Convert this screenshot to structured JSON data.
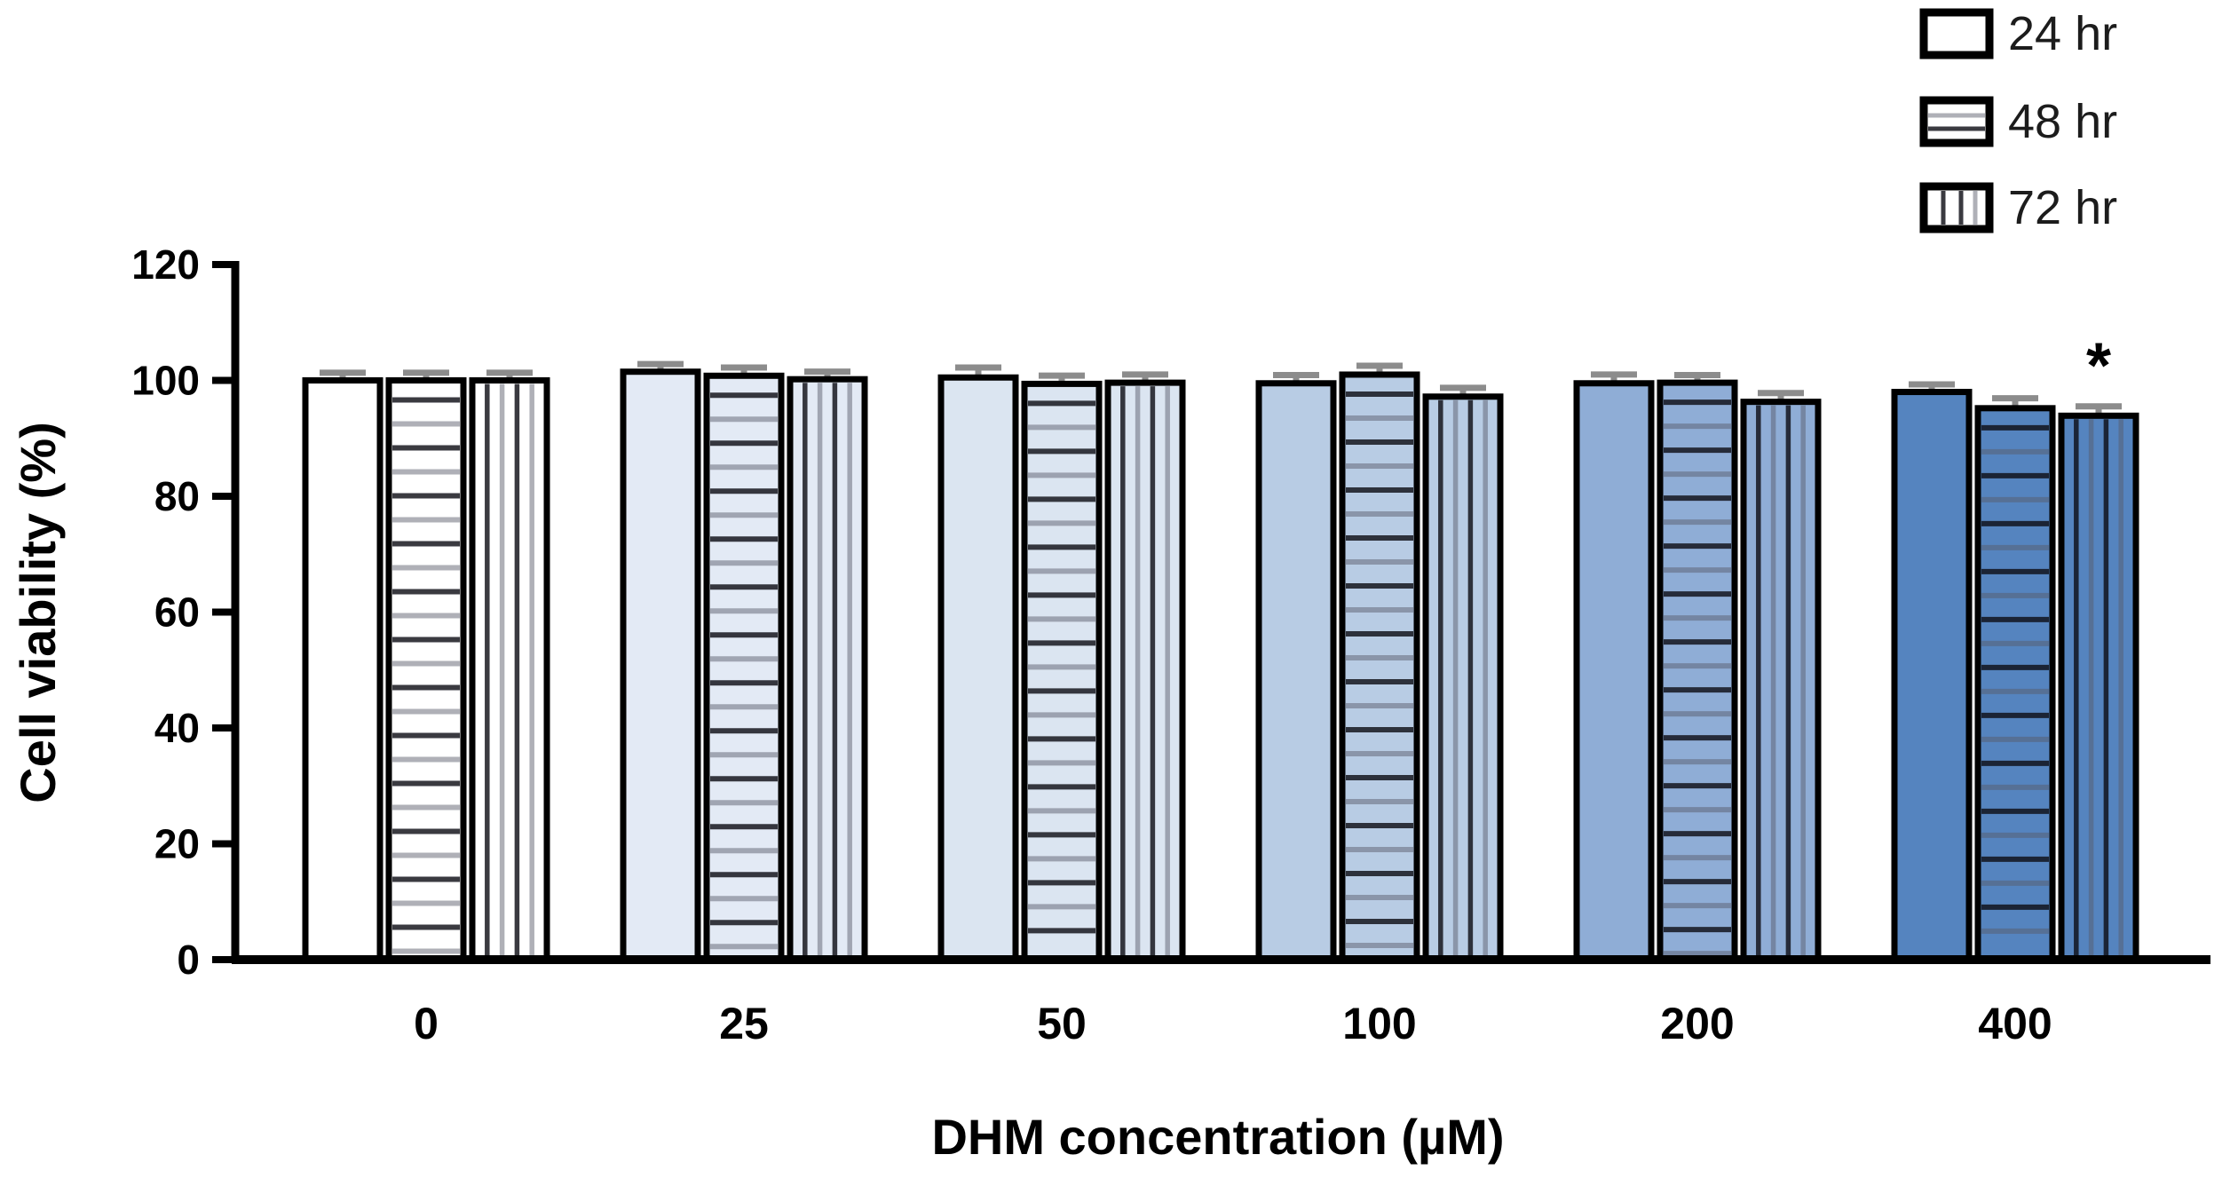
{
  "figure": {
    "background": "#ffffff",
    "outline_color": "#000000",
    "errorbar_color": "#8c8c8c",
    "stripe_dark": "rgba(15,15,22,0.82)",
    "stripe_gray": "rgba(88,90,104,0.48)"
  },
  "legend": {
    "position": "top-right",
    "items": [
      {
        "label": "24 hr",
        "pattern": "solid"
      },
      {
        "label": "48 hr",
        "pattern": "h-stripes"
      },
      {
        "label": "72 hr",
        "pattern": "v-stripes"
      }
    ]
  },
  "chart_data": {
    "type": "bar",
    "title": "",
    "xlabel": "DHM concentration (µM)",
    "ylabel": "Cell viability (%)",
    "ylim": [
      0,
      120
    ],
    "yticks": [
      0,
      20,
      40,
      60,
      80,
      100,
      120
    ],
    "grid": false,
    "legend_position": "top-right",
    "categories": [
      "0",
      "25",
      "50",
      "100",
      "200",
      "400"
    ],
    "group_colors": [
      "#ffffff",
      "#e3eaf5",
      "#dbe5f1",
      "#b8cce4",
      "#8fadd6",
      "#5584bf"
    ],
    "series": [
      {
        "name": "24 hr",
        "pattern": "solid",
        "values": [
          100,
          101.5,
          100.5,
          99.5,
          99.5,
          98
        ],
        "errors": [
          0.4,
          0.4,
          0.8,
          0.5,
          0.6,
          0.4
        ]
      },
      {
        "name": "48 hr",
        "pattern": "h-stripes",
        "values": [
          100,
          100.8,
          99.4,
          101,
          99.6,
          95.2
        ],
        "errors": [
          0.4,
          0.5,
          0.5,
          0.6,
          0.4,
          0.8
        ]
      },
      {
        "name": "72 hr",
        "pattern": "v-stripes",
        "values": [
          100,
          100.2,
          99.6,
          97.2,
          96.3,
          93.9
        ],
        "errors": [
          0.4,
          0.4,
          0.5,
          0.6,
          0.6,
          0.7
        ]
      }
    ],
    "annotations": [
      {
        "text": "*",
        "category": "400",
        "series": "72 hr"
      }
    ]
  }
}
